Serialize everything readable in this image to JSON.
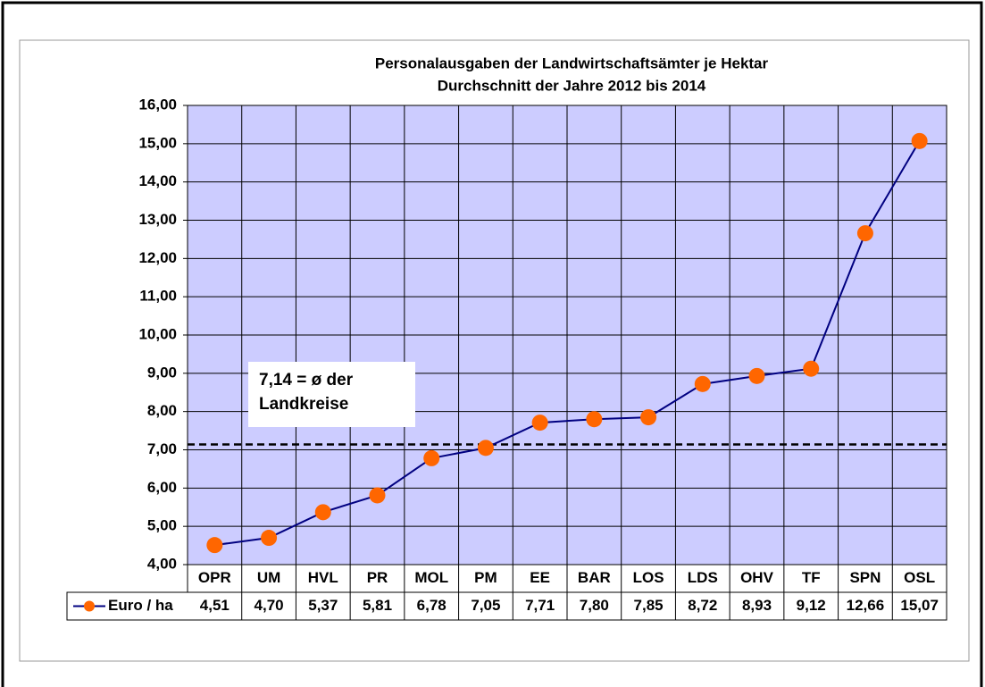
{
  "chart_data": {
    "type": "line",
    "title": [
      "Personalausgaben der Landwirtschaftsämter je Hektar",
      "Durchschnitt der Jahre 2012 bis 2014"
    ],
    "categories": [
      "OPR",
      "UM",
      "HVL",
      "PR",
      "MOL",
      "PM",
      "EE",
      "BAR",
      "LOS",
      "LDS",
      "OHV",
      "TF",
      "SPN",
      "OSL"
    ],
    "series": [
      {
        "name": "Euro / ha",
        "color": "#000080",
        "marker_color": "#ff6600",
        "values": [
          4.51,
          4.7,
          5.37,
          5.81,
          6.78,
          7.05,
          7.71,
          7.8,
          7.85,
          8.72,
          8.93,
          9.12,
          12.66,
          15.07
        ],
        "value_labels": [
          "4,51",
          "4,70",
          "5,37",
          "5,81",
          "6,78",
          "7,05",
          "7,71",
          "7,80",
          "7,85",
          "8,72",
          "8,93",
          "9,12",
          "12,66",
          "15,07"
        ]
      }
    ],
    "ylim": [
      4,
      16
    ],
    "yticks": [
      {
        "value": 4,
        "label": "4,00"
      },
      {
        "value": 5,
        "label": "5,00"
      },
      {
        "value": 6,
        "label": "6,00"
      },
      {
        "value": 7,
        "label": "7,00"
      },
      {
        "value": 8,
        "label": "8,00"
      },
      {
        "value": 9,
        "label": "9,00"
      },
      {
        "value": 10,
        "label": "10,00"
      },
      {
        "value": 11,
        "label": "11,00"
      },
      {
        "value": 12,
        "label": "12,00"
      },
      {
        "value": 13,
        "label": "13,00"
      },
      {
        "value": 14,
        "label": "14,00"
      },
      {
        "value": 15,
        "label": "15,00"
      },
      {
        "value": 16,
        "label": "16,00"
      }
    ],
    "grid": true,
    "plot_background": "#ccccff",
    "reference_line": {
      "value": 7.14,
      "annotation": [
        "7,14 = ø der",
        "Landkreise"
      ]
    }
  }
}
